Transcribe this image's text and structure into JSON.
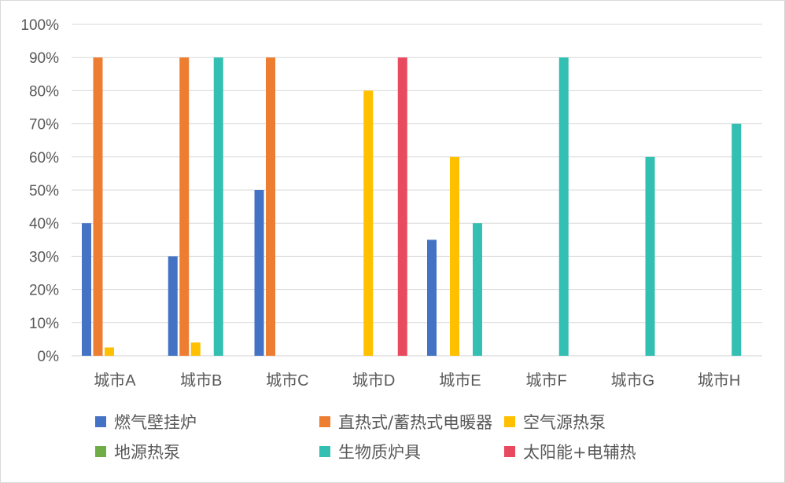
{
  "chart_data": {
    "type": "bar",
    "title": "",
    "xlabel": "",
    "ylabel": "",
    "ylim": [
      0,
      100
    ],
    "yticks": [
      "0%",
      "10%",
      "20%",
      "30%",
      "40%",
      "50%",
      "60%",
      "70%",
      "80%",
      "90%",
      "100%"
    ],
    "grid": true,
    "legend_position": "bottom",
    "categories": [
      "城市A",
      "城市B",
      "城市C",
      "城市D",
      "城市E",
      "城市F",
      "城市G",
      "城市H"
    ],
    "series": [
      {
        "name": "燃气壁挂炉",
        "color": "#4472c4",
        "values": [
          40,
          30,
          50,
          null,
          35,
          null,
          null,
          null
        ]
      },
      {
        "name": "直热式/蓄热式电暖器",
        "color": "#ed7d31",
        "values": [
          90,
          90,
          90,
          null,
          null,
          null,
          null,
          null
        ]
      },
      {
        "name": "空气源热泵",
        "color": "#ffc000",
        "values": [
          2.5,
          4,
          null,
          80,
          60,
          null,
          null,
          null
        ]
      },
      {
        "name": "地源热泵",
        "color": "#70ad47",
        "values": [
          null,
          null,
          null,
          null,
          null,
          null,
          null,
          null
        ]
      },
      {
        "name": "生物质炉具",
        "color": "#33bfb2",
        "values": [
          null,
          90,
          null,
          null,
          40,
          90,
          60,
          70
        ]
      },
      {
        "name": "太阳能+电辅热",
        "color": "#e84a5f",
        "values": [
          null,
          null,
          null,
          90,
          null,
          null,
          null,
          null
        ]
      }
    ]
  }
}
